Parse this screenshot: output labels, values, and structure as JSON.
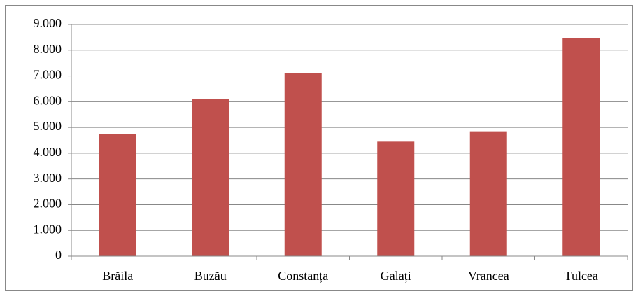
{
  "chart_data": {
    "type": "bar",
    "categories": [
      "Brăila",
      "Buzău",
      "Constanța",
      "Galați",
      "Vrancea",
      "Tulcea"
    ],
    "values": [
      4750,
      6100,
      7100,
      4450,
      4850,
      8480
    ],
    "color": "#c0504d",
    "ylim": [
      0,
      9000
    ],
    "yticks": [
      0,
      {
        "value": 1000,
        "label": "1.000"
      },
      {
        "value": 2000,
        "label": "2.000"
      },
      {
        "value": 3000,
        "label": "3.000"
      },
      {
        "value": 4000,
        "label": "4.000"
      },
      {
        "value": 5000,
        "label": "5.000"
      },
      {
        "value": 6000,
        "label": "6.000"
      },
      {
        "value": 7000,
        "label": "7.000"
      },
      {
        "value": 8000,
        "label": "8.000"
      },
      {
        "value": 9000,
        "label": "9.000"
      }
    ],
    "grid": true
  }
}
